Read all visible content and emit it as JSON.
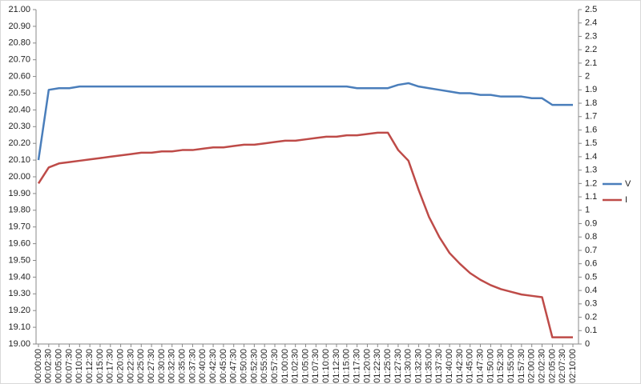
{
  "chart_data": {
    "type": "line",
    "categories": [
      "00:00:00",
      "00:02:30",
      "00:05:00",
      "00:07:30",
      "00:10:00",
      "00:12:30",
      "00:15:00",
      "00:17:30",
      "00:20:00",
      "00:22:30",
      "00:25:00",
      "00:27:30",
      "00:30:00",
      "00:32:30",
      "00:35:00",
      "00:37:30",
      "00:40:00",
      "00:42:30",
      "00:45:00",
      "00:47:30",
      "00:50:00",
      "00:52:30",
      "00:55:00",
      "00:57:30",
      "01:00:00",
      "01:02:30",
      "01:05:00",
      "01:07:30",
      "01:10:00",
      "01:12:30",
      "01:15:00",
      "01:17:30",
      "01:20:00",
      "01:22:30",
      "01:25:00",
      "01:27:30",
      "01:30:00",
      "01:32:30",
      "01:35:00",
      "01:37:30",
      "01:40:00",
      "01:42:30",
      "01:45:00",
      "01:47:30",
      "01:50:00",
      "01:52:30",
      "01:55:00",
      "01:57:30",
      "02:00:00",
      "02:02:30",
      "02:05:00",
      "02:07:30",
      "02:10:00"
    ],
    "series": [
      {
        "name": "V",
        "color": "#4a7ebb",
        "values": [
          20.1,
          20.52,
          20.53,
          20.53,
          20.54,
          20.54,
          20.54,
          20.54,
          20.54,
          20.54,
          20.54,
          20.54,
          20.54,
          20.54,
          20.54,
          20.54,
          20.54,
          20.54,
          20.54,
          20.54,
          20.54,
          20.54,
          20.54,
          20.54,
          20.54,
          20.54,
          20.54,
          20.54,
          20.54,
          20.54,
          20.54,
          20.53,
          20.53,
          20.53,
          20.53,
          20.55,
          20.56,
          20.54,
          20.53,
          20.52,
          20.51,
          20.5,
          20.5,
          20.49,
          20.49,
          20.48,
          20.48,
          20.48,
          20.47,
          20.47,
          20.43,
          20.43,
          20.43
        ]
      },
      {
        "name": "I",
        "color": "#be4b48",
        "axis": "y2",
        "values": [
          1.2,
          1.32,
          1.35,
          1.36,
          1.37,
          1.38,
          1.39,
          1.4,
          1.41,
          1.42,
          1.43,
          1.43,
          1.44,
          1.44,
          1.45,
          1.45,
          1.46,
          1.47,
          1.47,
          1.48,
          1.49,
          1.49,
          1.5,
          1.51,
          1.52,
          1.52,
          1.53,
          1.54,
          1.55,
          1.55,
          1.56,
          1.56,
          1.57,
          1.58,
          1.58,
          1.45,
          1.37,
          1.15,
          0.95,
          0.8,
          0.68,
          0.6,
          0.53,
          0.48,
          0.44,
          0.41,
          0.39,
          0.37,
          0.36,
          0.35,
          0.05,
          0.05,
          0.05
        ]
      }
    ],
    "ylim": [
      19,
      21
    ],
    "yticks": [
      {
        "value": 19,
        "label": "19.00"
      },
      {
        "value": 19.1,
        "label": "19.10"
      },
      {
        "value": 19.2,
        "label": "19.20"
      },
      {
        "value": 19.3,
        "label": "19.30"
      },
      {
        "value": 19.4,
        "label": "19.40"
      },
      {
        "value": 19.5,
        "label": "19.50"
      },
      {
        "value": 19.6,
        "label": "19.60"
      },
      {
        "value": 19.7,
        "label": "19.70"
      },
      {
        "value": 19.8,
        "label": "19.80"
      },
      {
        "value": 19.9,
        "label": "19.90"
      },
      {
        "value": 20,
        "label": "20.00"
      },
      {
        "value": 20.1,
        "label": "20.10"
      },
      {
        "value": 20.2,
        "label": "20.20"
      },
      {
        "value": 20.3,
        "label": "20.30"
      },
      {
        "value": 20.4,
        "label": "20.40"
      },
      {
        "value": 20.5,
        "label": "20.50"
      },
      {
        "value": 20.6,
        "label": "20.60"
      },
      {
        "value": 20.7,
        "label": "20.70"
      },
      {
        "value": 20.8,
        "label": "20.80"
      },
      {
        "value": 20.9,
        "label": "20.90"
      },
      {
        "value": 21,
        "label": "21.00"
      }
    ],
    "y2lim": [
      0,
      2.5
    ],
    "y2ticks": [
      0,
      0.1,
      0.2,
      0.3,
      0.4,
      0.5,
      0.6,
      0.7,
      0.8,
      0.9,
      1,
      1.1,
      1.2,
      1.3,
      1.4,
      1.5,
      1.6,
      1.7,
      1.8,
      1.9,
      2,
      2.1,
      2.2,
      2.3,
      2.4,
      2.5
    ],
    "grid": false,
    "legend": "right"
  }
}
